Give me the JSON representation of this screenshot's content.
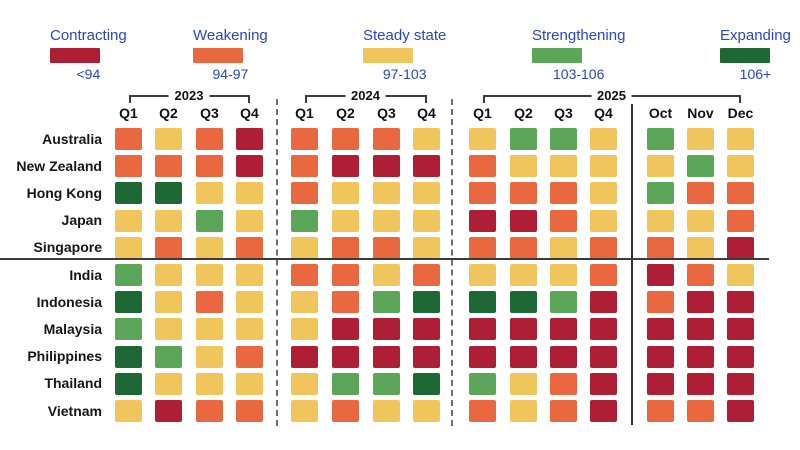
{
  "legend": {
    "text_color": "#2745D0",
    "items": [
      {
        "label": "Contracting",
        "range": "<94",
        "category": "contracting",
        "color": "#AE1E35"
      },
      {
        "label": "Weakening",
        "range": "94-97",
        "category": "weakening",
        "color": "#E9683F"
      },
      {
        "label": "Steady state",
        "range": "97-103",
        "category": "steady",
        "color": "#F0C55C"
      },
      {
        "label": "Strengthening",
        "range": "103-106",
        "category": "strengthening",
        "color": "#5CA65A"
      },
      {
        "label": "Expanding",
        "range": "106+",
        "category": "expanding",
        "color": "#1E6836"
      }
    ]
  },
  "chart_data": {
    "type": "heatmap",
    "legend_position": "top",
    "categories_scale": {
      "contracting": "<94",
      "weakening": "94-97",
      "steady": "97-103",
      "strengthening": "103-106",
      "expanding": "106+"
    },
    "column_groups": [
      {
        "label": "2023",
        "columns": [
          "Q1",
          "Q2",
          "Q3",
          "Q4"
        ]
      },
      {
        "label": "2024",
        "columns": [
          "Q1",
          "Q2",
          "Q3",
          "Q4"
        ]
      },
      {
        "label": "2025",
        "columns": [
          "Q1",
          "Q2",
          "Q3",
          "Q4",
          "Oct",
          "Nov",
          "Dec"
        ]
      }
    ],
    "columns": [
      "Q1",
      "Q2",
      "Q3",
      "Q4",
      "Q1",
      "Q2",
      "Q3",
      "Q4",
      "Q1",
      "Q2",
      "Q3",
      "Q4",
      "Oct",
      "Nov",
      "Dec"
    ],
    "row_groups": [
      [
        "Australia",
        "New Zealand",
        "Hong Kong",
        "Japan",
        "Singapore"
      ],
      [
        "India",
        "Indonesia",
        "Malaysia",
        "Philippines",
        "Thailand",
        "Vietnam"
      ]
    ],
    "rows": [
      {
        "name": "Australia",
        "values": [
          "weakening",
          "steady",
          "weakening",
          "contracting",
          "weakening",
          "weakening",
          "weakening",
          "steady",
          "steady",
          "strengthening",
          "strengthening",
          "steady",
          "strengthening",
          "steady",
          "steady"
        ]
      },
      {
        "name": "New Zealand",
        "values": [
          "weakening",
          "weakening",
          "weakening",
          "contracting",
          "weakening",
          "contracting",
          "contracting",
          "contracting",
          "weakening",
          "steady",
          "steady",
          "steady",
          "steady",
          "strengthening",
          "steady"
        ]
      },
      {
        "name": "Hong Kong",
        "values": [
          "expanding",
          "expanding",
          "steady",
          "steady",
          "weakening",
          "steady",
          "steady",
          "steady",
          "weakening",
          "weakening",
          "weakening",
          "steady",
          "strengthening",
          "weakening",
          "weakening"
        ]
      },
      {
        "name": "Japan",
        "values": [
          "steady",
          "steady",
          "strengthening",
          "steady",
          "strengthening",
          "steady",
          "steady",
          "steady",
          "contracting",
          "contracting",
          "weakening",
          "steady",
          "steady",
          "steady",
          "weakening"
        ]
      },
      {
        "name": "Singapore",
        "values": [
          "steady",
          "weakening",
          "steady",
          "weakening",
          "steady",
          "weakening",
          "weakening",
          "steady",
          "weakening",
          "weakening",
          "steady",
          "weakening",
          "weakening",
          "steady",
          "contracting"
        ]
      },
      {
        "name": "India",
        "values": [
          "strengthening",
          "steady",
          "steady",
          "steady",
          "weakening",
          "weakening",
          "steady",
          "weakening",
          "steady",
          "steady",
          "steady",
          "weakening",
          "contracting",
          "weakening",
          "steady"
        ]
      },
      {
        "name": "Indonesia",
        "values": [
          "expanding",
          "steady",
          "weakening",
          "steady",
          "steady",
          "weakening",
          "strengthening",
          "expanding",
          "expanding",
          "expanding",
          "strengthening",
          "contracting",
          "weakening",
          "contracting",
          "contracting"
        ]
      },
      {
        "name": "Malaysia",
        "values": [
          "strengthening",
          "steady",
          "steady",
          "steady",
          "steady",
          "contracting",
          "contracting",
          "contracting",
          "contracting",
          "contracting",
          "contracting",
          "contracting",
          "contracting",
          "contracting",
          "contracting"
        ]
      },
      {
        "name": "Philippines",
        "values": [
          "expanding",
          "strengthening",
          "steady",
          "weakening",
          "contracting",
          "contracting",
          "contracting",
          "contracting",
          "contracting",
          "contracting",
          "contracting",
          "contracting",
          "contracting",
          "contracting",
          "contracting"
        ]
      },
      {
        "name": "Thailand",
        "values": [
          "expanding",
          "steady",
          "steady",
          "steady",
          "steady",
          "strengthening",
          "strengthening",
          "expanding",
          "strengthening",
          "steady",
          "weakening",
          "contracting",
          "contracting",
          "contracting",
          "contracting"
        ]
      },
      {
        "name": "Vietnam",
        "values": [
          "steady",
          "contracting",
          "weakening",
          "weakening",
          "steady",
          "weakening",
          "steady",
          "steady",
          "weakening",
          "steady",
          "weakening",
          "contracting",
          "weakening",
          "weakening",
          "contracting"
        ]
      }
    ]
  }
}
